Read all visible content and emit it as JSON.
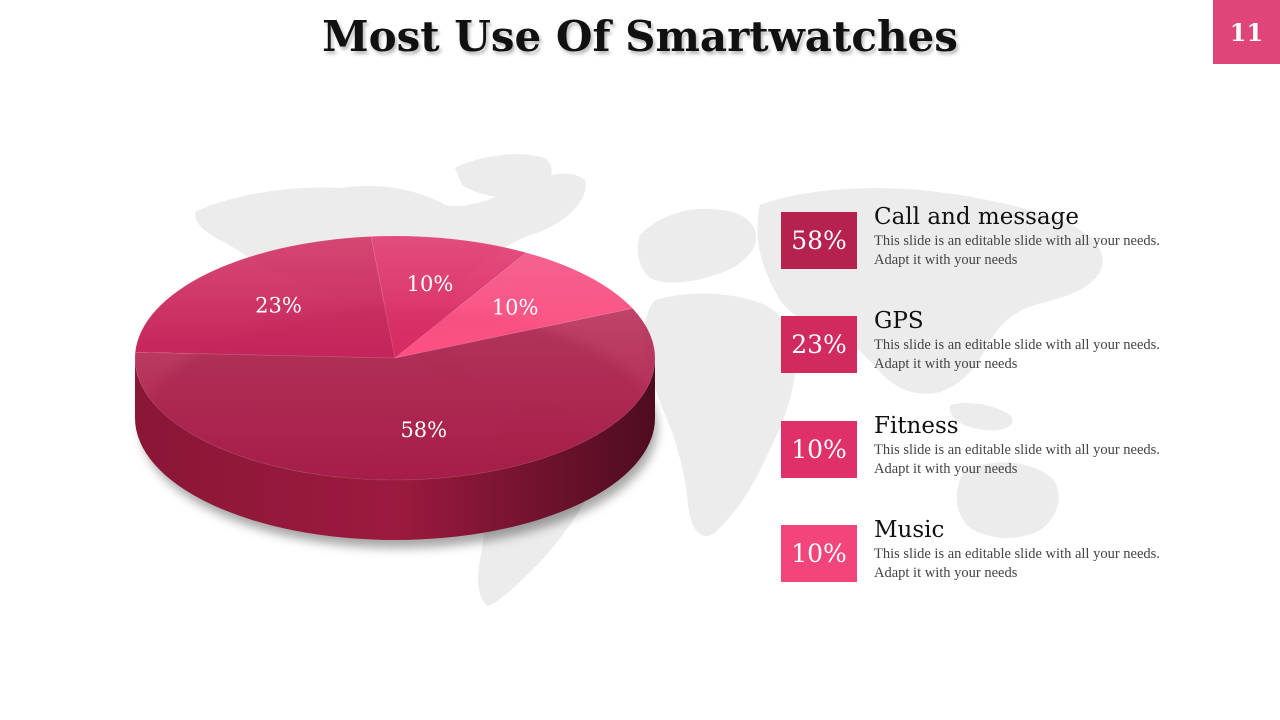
{
  "title": "Most Use Of Smartwatches",
  "page_number": "11",
  "colors": {
    "accent": "#E0457A",
    "slice_call": "#B5224F",
    "slice_gps": "#D12A5E",
    "slice_fitness": "#E0306A",
    "slice_music": "#F2467A"
  },
  "background_icon": "world-map",
  "chart_data": {
    "type": "pie",
    "style": "3d",
    "categories": [
      "Call and message",
      "GPS",
      "Fitness",
      "Music"
    ],
    "values": [
      58,
      23,
      10,
      10
    ],
    "data_labels": [
      "58%",
      "23%",
      "10%",
      "10%"
    ]
  },
  "legend": [
    {
      "percent": "58%",
      "label": "Call and message",
      "description": "This slide is an editable slide with all your needs. Adapt it with your needs",
      "color": "#B5224F"
    },
    {
      "percent": "23%",
      "label": "GPS",
      "description": "This slide is an editable slide with all your needs. Adapt it with your needs",
      "color": "#D12A5E"
    },
    {
      "percent": "10%",
      "label": "Fitness",
      "description": "This slide is an editable slide with all your needs. Adapt it with your needs",
      "color": "#E0306A"
    },
    {
      "percent": "10%",
      "label": "Music",
      "description": "This slide is an editable slide with all your needs. Adapt it with your needs",
      "color": "#F2467A"
    }
  ]
}
